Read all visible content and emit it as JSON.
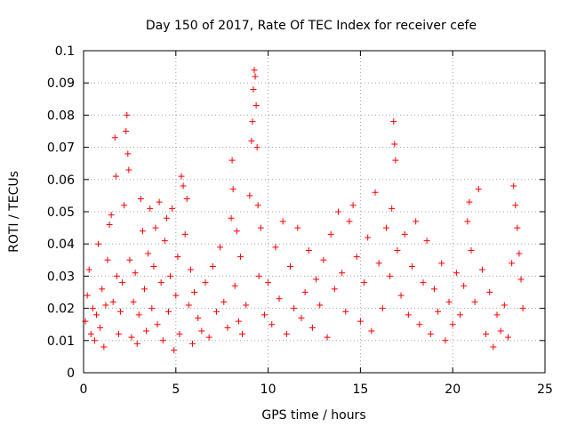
{
  "chart_data": {
    "type": "scatter",
    "title": "Day 150 of 2017, Rate Of TEC Index for receiver cefe",
    "xlabel": "GPS time / hours",
    "ylabel": "ROTI / TECUs",
    "xlim": [
      0,
      25
    ],
    "ylim": [
      0,
      0.1
    ],
    "x_ticks": [
      "0",
      "5",
      "10",
      "15",
      "20",
      "25"
    ],
    "y_ticks": [
      "0",
      "0.01",
      "0.02",
      "0.03",
      "0.04",
      "0.05",
      "0.06",
      "0.07",
      "0.08",
      "0.09",
      "0.1"
    ],
    "grid": true,
    "marker": "plus",
    "color": "#ff0000",
    "series": [
      {
        "points": [
          [
            0.1,
            0.016
          ],
          [
            0.2,
            0.024
          ],
          [
            0.3,
            0.032
          ],
          [
            0.4,
            0.012
          ],
          [
            0.5,
            0.02
          ],
          [
            0.6,
            0.01
          ],
          [
            0.7,
            0.018
          ],
          [
            0.8,
            0.04
          ],
          [
            0.9,
            0.014
          ],
          [
            1.0,
            0.026
          ],
          [
            1.1,
            0.008
          ],
          [
            1.2,
            0.021
          ],
          [
            1.3,
            0.035
          ],
          [
            1.4,
            0.046
          ],
          [
            1.5,
            0.049
          ],
          [
            1.6,
            0.022
          ],
          [
            1.7,
            0.073
          ],
          [
            1.75,
            0.061
          ],
          [
            1.8,
            0.03
          ],
          [
            1.9,
            0.012
          ],
          [
            2.0,
            0.019
          ],
          [
            2.1,
            0.028
          ],
          [
            2.2,
            0.052
          ],
          [
            2.3,
            0.075
          ],
          [
            2.35,
            0.08
          ],
          [
            2.4,
            0.068
          ],
          [
            2.45,
            0.063
          ],
          [
            2.5,
            0.035
          ],
          [
            2.6,
            0.011
          ],
          [
            2.7,
            0.022
          ],
          [
            2.8,
            0.031
          ],
          [
            2.9,
            0.009
          ],
          [
            3.0,
            0.018
          ],
          [
            3.1,
            0.054
          ],
          [
            3.2,
            0.044
          ],
          [
            3.3,
            0.026
          ],
          [
            3.4,
            0.013
          ],
          [
            3.5,
            0.037
          ],
          [
            3.6,
            0.051
          ],
          [
            3.7,
            0.02
          ],
          [
            3.8,
            0.033
          ],
          [
            3.9,
            0.045
          ],
          [
            4.0,
            0.015
          ],
          [
            4.1,
            0.053
          ],
          [
            4.2,
            0.028
          ],
          [
            4.3,
            0.01
          ],
          [
            4.4,
            0.041
          ],
          [
            4.5,
            0.048
          ],
          [
            4.6,
            0.019
          ],
          [
            4.7,
            0.03
          ],
          [
            4.8,
            0.051
          ],
          [
            4.9,
            0.007
          ],
          [
            5.0,
            0.024
          ],
          [
            5.1,
            0.036
          ],
          [
            5.2,
            0.012
          ],
          [
            5.3,
            0.061
          ],
          [
            5.4,
            0.058
          ],
          [
            5.5,
            0.043
          ],
          [
            5.6,
            0.054
          ],
          [
            5.7,
            0.021
          ],
          [
            5.8,
            0.032
          ],
          [
            5.9,
            0.009
          ],
          [
            6.0,
            0.025
          ],
          [
            6.2,
            0.017
          ],
          [
            6.4,
            0.013
          ],
          [
            6.6,
            0.028
          ],
          [
            6.8,
            0.011
          ],
          [
            7.0,
            0.033
          ],
          [
            7.2,
            0.019
          ],
          [
            7.4,
            0.039
          ],
          [
            7.6,
            0.022
          ],
          [
            7.8,
            0.014
          ],
          [
            8.0,
            0.048
          ],
          [
            8.05,
            0.066
          ],
          [
            8.1,
            0.057
          ],
          [
            8.2,
            0.027
          ],
          [
            8.3,
            0.044
          ],
          [
            8.4,
            0.016
          ],
          [
            8.5,
            0.036
          ],
          [
            8.6,
            0.012
          ],
          [
            8.8,
            0.021
          ],
          [
            9.0,
            0.055
          ],
          [
            9.1,
            0.072
          ],
          [
            9.15,
            0.078
          ],
          [
            9.2,
            0.088
          ],
          [
            9.25,
            0.094
          ],
          [
            9.3,
            0.092
          ],
          [
            9.35,
            0.083
          ],
          [
            9.4,
            0.07
          ],
          [
            9.45,
            0.052
          ],
          [
            9.5,
            0.03
          ],
          [
            9.6,
            0.045
          ],
          [
            9.8,
            0.018
          ],
          [
            10.0,
            0.028
          ],
          [
            10.2,
            0.015
          ],
          [
            10.4,
            0.039
          ],
          [
            10.6,
            0.023
          ],
          [
            10.8,
            0.047
          ],
          [
            11.0,
            0.012
          ],
          [
            11.2,
            0.033
          ],
          [
            11.4,
            0.02
          ],
          [
            11.6,
            0.045
          ],
          [
            11.8,
            0.017
          ],
          [
            12.0,
            0.025
          ],
          [
            12.2,
            0.038
          ],
          [
            12.4,
            0.014
          ],
          [
            12.6,
            0.029
          ],
          [
            12.8,
            0.021
          ],
          [
            13.0,
            0.035
          ],
          [
            13.2,
            0.011
          ],
          [
            13.4,
            0.043
          ],
          [
            13.6,
            0.026
          ],
          [
            13.8,
            0.05
          ],
          [
            14.0,
            0.031
          ],
          [
            14.2,
            0.019
          ],
          [
            14.4,
            0.047
          ],
          [
            14.6,
            0.052
          ],
          [
            14.8,
            0.036
          ],
          [
            15.0,
            0.016
          ],
          [
            15.2,
            0.028
          ],
          [
            15.4,
            0.042
          ],
          [
            15.6,
            0.013
          ],
          [
            15.8,
            0.056
          ],
          [
            16.0,
            0.034
          ],
          [
            16.2,
            0.02
          ],
          [
            16.4,
            0.045
          ],
          [
            16.6,
            0.03
          ],
          [
            16.7,
            0.051
          ],
          [
            16.8,
            0.078
          ],
          [
            16.85,
            0.071
          ],
          [
            16.9,
            0.066
          ],
          [
            17.0,
            0.038
          ],
          [
            17.2,
            0.024
          ],
          [
            17.4,
            0.043
          ],
          [
            17.6,
            0.018
          ],
          [
            17.8,
            0.033
          ],
          [
            18.0,
            0.047
          ],
          [
            18.2,
            0.015
          ],
          [
            18.4,
            0.028
          ],
          [
            18.6,
            0.041
          ],
          [
            18.8,
            0.012
          ],
          [
            19.0,
            0.026
          ],
          [
            19.2,
            0.019
          ],
          [
            19.4,
            0.034
          ],
          [
            19.6,
            0.01
          ],
          [
            19.8,
            0.022
          ],
          [
            20.0,
            0.015
          ],
          [
            20.2,
            0.031
          ],
          [
            20.4,
            0.018
          ],
          [
            20.6,
            0.027
          ],
          [
            20.8,
            0.047
          ],
          [
            20.9,
            0.053
          ],
          [
            21.0,
            0.038
          ],
          [
            21.2,
            0.022
          ],
          [
            21.4,
            0.057
          ],
          [
            21.6,
            0.032
          ],
          [
            21.8,
            0.012
          ],
          [
            22.0,
            0.025
          ],
          [
            22.2,
            0.008
          ],
          [
            22.4,
            0.018
          ],
          [
            22.6,
            0.013
          ],
          [
            22.8,
            0.021
          ],
          [
            23.0,
            0.011
          ],
          [
            23.2,
            0.034
          ],
          [
            23.3,
            0.058
          ],
          [
            23.4,
            0.052
          ],
          [
            23.5,
            0.045
          ],
          [
            23.6,
            0.037
          ],
          [
            23.7,
            0.029
          ],
          [
            23.8,
            0.02
          ]
        ]
      }
    ]
  }
}
